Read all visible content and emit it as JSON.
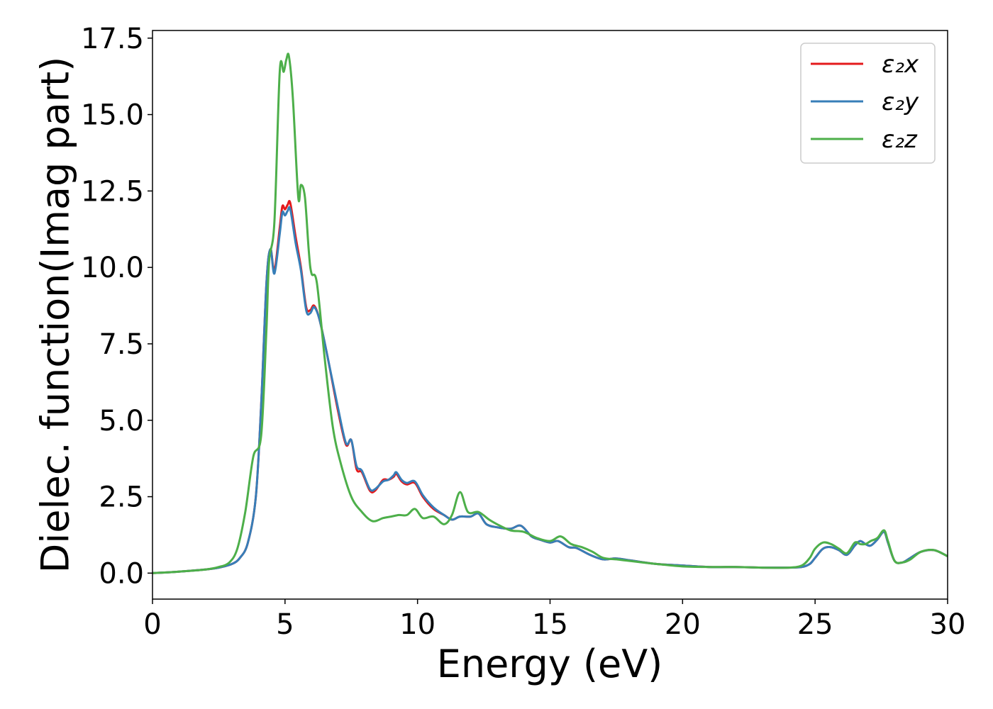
{
  "chart_data": {
    "type": "line",
    "xlabel": "Energy (eV)",
    "ylabel": "Dielec. function(Imag part)",
    "xlim": [
      0,
      30
    ],
    "ylim": [
      -0.85,
      17.75
    ],
    "xticks": [
      0,
      5,
      10,
      15,
      20,
      25,
      30
    ],
    "xtick_labels": [
      "0",
      "5",
      "10",
      "15",
      "20",
      "25",
      "30"
    ],
    "yticks": [
      0.0,
      2.5,
      5.0,
      7.5,
      10.0,
      12.5,
      15.0,
      17.5
    ],
    "ytick_labels": [
      "0.0",
      "2.5",
      "5.0",
      "7.5",
      "10.0",
      "12.5",
      "15.0",
      "17.5"
    ],
    "grid": false,
    "legend_position": "top-right",
    "series": [
      {
        "name": "ε₂x",
        "color": "#e41a1c",
        "x": [
          0,
          1,
          2,
          2.5,
          3.0,
          3.3,
          3.6,
          3.9,
          4.1,
          4.3,
          4.45,
          4.6,
          4.8,
          4.9,
          5.0,
          5.1,
          5.2,
          5.4,
          5.6,
          5.8,
          5.95,
          6.1,
          6.3,
          6.6,
          7.0,
          7.3,
          7.5,
          7.7,
          7.9,
          8.2,
          8.4,
          8.7,
          8.9,
          9.1,
          9.2,
          9.4,
          9.6,
          9.9,
          10.2,
          10.6,
          11.0,
          11.3,
          11.6,
          12.0,
          12.3,
          12.6,
          13.0,
          13.5,
          13.9,
          14.3,
          14.6,
          15.0,
          15.3,
          15.7,
          16.0,
          16.5,
          17.0,
          17.5,
          18.0,
          19.0,
          20.0,
          21.0,
          22.0,
          23.0,
          24.0,
          24.5,
          24.8,
          25.0,
          25.3,
          25.6,
          25.9,
          26.2,
          26.5,
          26.7,
          26.9,
          27.1,
          27.35,
          27.6,
          27.75,
          28.0,
          28.3,
          28.6,
          29.0,
          29.5,
          30.0
        ],
        "values": [
          0.0,
          0.05,
          0.12,
          0.18,
          0.3,
          0.5,
          1.0,
          2.5,
          5.5,
          9.5,
          10.6,
          9.9,
          11.3,
          12.0,
          11.9,
          12.05,
          12.1,
          11.0,
          10.0,
          8.7,
          8.6,
          8.75,
          8.3,
          7.1,
          5.3,
          4.2,
          4.35,
          3.4,
          3.3,
          2.7,
          2.7,
          3.05,
          3.05,
          3.15,
          3.25,
          3.0,
          2.9,
          2.95,
          2.5,
          2.1,
          1.9,
          1.75,
          1.85,
          1.85,
          1.95,
          1.6,
          1.5,
          1.45,
          1.55,
          1.2,
          1.1,
          1.0,
          1.05,
          0.85,
          0.82,
          0.6,
          0.45,
          0.48,
          0.42,
          0.3,
          0.25,
          0.2,
          0.2,
          0.18,
          0.18,
          0.2,
          0.3,
          0.5,
          0.8,
          0.85,
          0.75,
          0.6,
          0.9,
          1.05,
          0.95,
          0.9,
          1.1,
          1.35,
          1.0,
          0.4,
          0.35,
          0.5,
          0.7,
          0.75,
          0.55
        ]
      },
      {
        "name": "ε₂y",
        "color": "#377eb8",
        "x": [
          0,
          1,
          2,
          2.5,
          3.0,
          3.3,
          3.6,
          3.9,
          4.1,
          4.3,
          4.45,
          4.6,
          4.8,
          4.9,
          5.0,
          5.1,
          5.2,
          5.4,
          5.6,
          5.8,
          5.95,
          6.1,
          6.3,
          6.6,
          7.0,
          7.3,
          7.5,
          7.7,
          7.9,
          8.2,
          8.4,
          8.7,
          8.9,
          9.1,
          9.2,
          9.4,
          9.6,
          9.9,
          10.2,
          10.6,
          11.0,
          11.3,
          11.6,
          12.0,
          12.3,
          12.6,
          13.0,
          13.5,
          13.9,
          14.3,
          14.6,
          15.0,
          15.3,
          15.7,
          16.0,
          16.5,
          17.0,
          17.5,
          18.0,
          19.0,
          20.0,
          21.0,
          22.0,
          23.0,
          24.0,
          24.5,
          24.8,
          25.0,
          25.3,
          25.6,
          25.9,
          26.2,
          26.5,
          26.7,
          26.9,
          27.1,
          27.35,
          27.6,
          27.75,
          28.0,
          28.3,
          28.6,
          29.0,
          29.5,
          30.0
        ],
        "values": [
          0.0,
          0.05,
          0.12,
          0.18,
          0.3,
          0.5,
          1.0,
          2.5,
          5.5,
          9.5,
          10.6,
          9.8,
          11.1,
          11.8,
          11.7,
          11.85,
          11.9,
          10.8,
          9.9,
          8.6,
          8.5,
          8.7,
          8.3,
          7.1,
          5.4,
          4.25,
          4.35,
          3.5,
          3.35,
          2.75,
          2.75,
          3.0,
          3.05,
          3.2,
          3.3,
          3.05,
          2.95,
          3.0,
          2.55,
          2.15,
          1.9,
          1.75,
          1.85,
          1.85,
          1.95,
          1.6,
          1.5,
          1.45,
          1.55,
          1.2,
          1.1,
          1.0,
          1.05,
          0.85,
          0.82,
          0.6,
          0.45,
          0.48,
          0.42,
          0.3,
          0.25,
          0.2,
          0.2,
          0.18,
          0.18,
          0.2,
          0.3,
          0.5,
          0.8,
          0.85,
          0.75,
          0.6,
          0.9,
          1.05,
          0.95,
          0.9,
          1.1,
          1.35,
          1.0,
          0.4,
          0.35,
          0.5,
          0.7,
          0.75,
          0.55
        ]
      },
      {
        "name": "ε₂z",
        "color": "#4daf4a",
        "x": [
          0,
          1,
          2,
          2.5,
          2.9,
          3.2,
          3.5,
          3.8,
          4.1,
          4.3,
          4.4,
          4.6,
          4.8,
          4.95,
          5.05,
          5.15,
          5.3,
          5.5,
          5.6,
          5.75,
          5.9,
          6.0,
          6.2,
          6.5,
          6.8,
          7.1,
          7.5,
          7.9,
          8.3,
          8.7,
          9.0,
          9.3,
          9.6,
          9.9,
          10.2,
          10.6,
          11.0,
          11.3,
          11.6,
          11.9,
          12.3,
          12.7,
          13.0,
          13.5,
          14.0,
          14.5,
          15.0,
          15.4,
          15.8,
          16.2,
          16.6,
          17.0,
          17.5,
          18.0,
          19.0,
          20.0,
          21.0,
          22.0,
          23.0,
          24.0,
          24.5,
          24.8,
          25.0,
          25.3,
          25.6,
          25.9,
          26.2,
          26.5,
          26.7,
          26.9,
          27.1,
          27.35,
          27.6,
          27.75,
          28.0,
          28.3,
          28.6,
          29.0,
          29.5,
          30.0
        ],
        "values": [
          0.0,
          0.05,
          0.12,
          0.2,
          0.35,
          0.8,
          2.0,
          3.8,
          4.5,
          8.0,
          10.2,
          11.5,
          16.4,
          16.4,
          16.8,
          16.9,
          15.5,
          12.3,
          12.7,
          12.3,
          10.5,
          9.8,
          9.5,
          7.0,
          4.8,
          3.6,
          2.5,
          2.0,
          1.7,
          1.8,
          1.85,
          1.9,
          1.9,
          2.1,
          1.8,
          1.85,
          1.6,
          1.9,
          2.65,
          2.0,
          2.0,
          1.75,
          1.6,
          1.4,
          1.35,
          1.15,
          1.05,
          1.2,
          0.95,
          0.85,
          0.7,
          0.5,
          0.45,
          0.4,
          0.3,
          0.22,
          0.2,
          0.2,
          0.18,
          0.18,
          0.25,
          0.5,
          0.8,
          1.0,
          0.95,
          0.8,
          0.65,
          1.0,
          0.95,
          0.95,
          1.05,
          1.15,
          1.4,
          1.05,
          0.4,
          0.35,
          0.45,
          0.7,
          0.75,
          0.55
        ]
      }
    ]
  }
}
